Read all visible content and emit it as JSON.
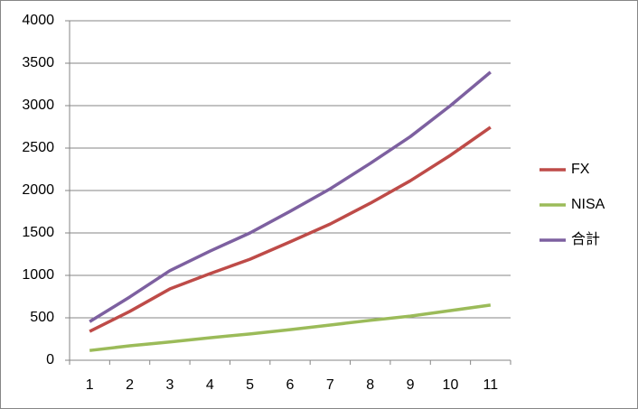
{
  "chart_data": {
    "type": "line",
    "categories": [
      "1",
      "2",
      "3",
      "4",
      "5",
      "6",
      "7",
      "8",
      "9",
      "10",
      "11"
    ],
    "series": [
      {
        "name": "FX",
        "color": "#be4b48",
        "values": [
          340,
          575,
          840,
          1020,
          1190,
          1395,
          1605,
          1850,
          2115,
          2415,
          2745
        ]
      },
      {
        "name": "NISA",
        "color": "#9bbb59",
        "values": [
          115,
          170,
          215,
          265,
          310,
          360,
          415,
          470,
          520,
          585,
          650
        ]
      },
      {
        "name": "合計",
        "color": "#7d60a0",
        "values": [
          455,
          745,
          1055,
          1285,
          1500,
          1755,
          2020,
          2320,
          2635,
          3000,
          3395
        ]
      }
    ],
    "ylim": [
      0,
      4000
    ],
    "yticks": [
      0,
      500,
      1000,
      1500,
      2000,
      2500,
      3000,
      3500,
      4000
    ],
    "grid": true,
    "legend": "right"
  }
}
